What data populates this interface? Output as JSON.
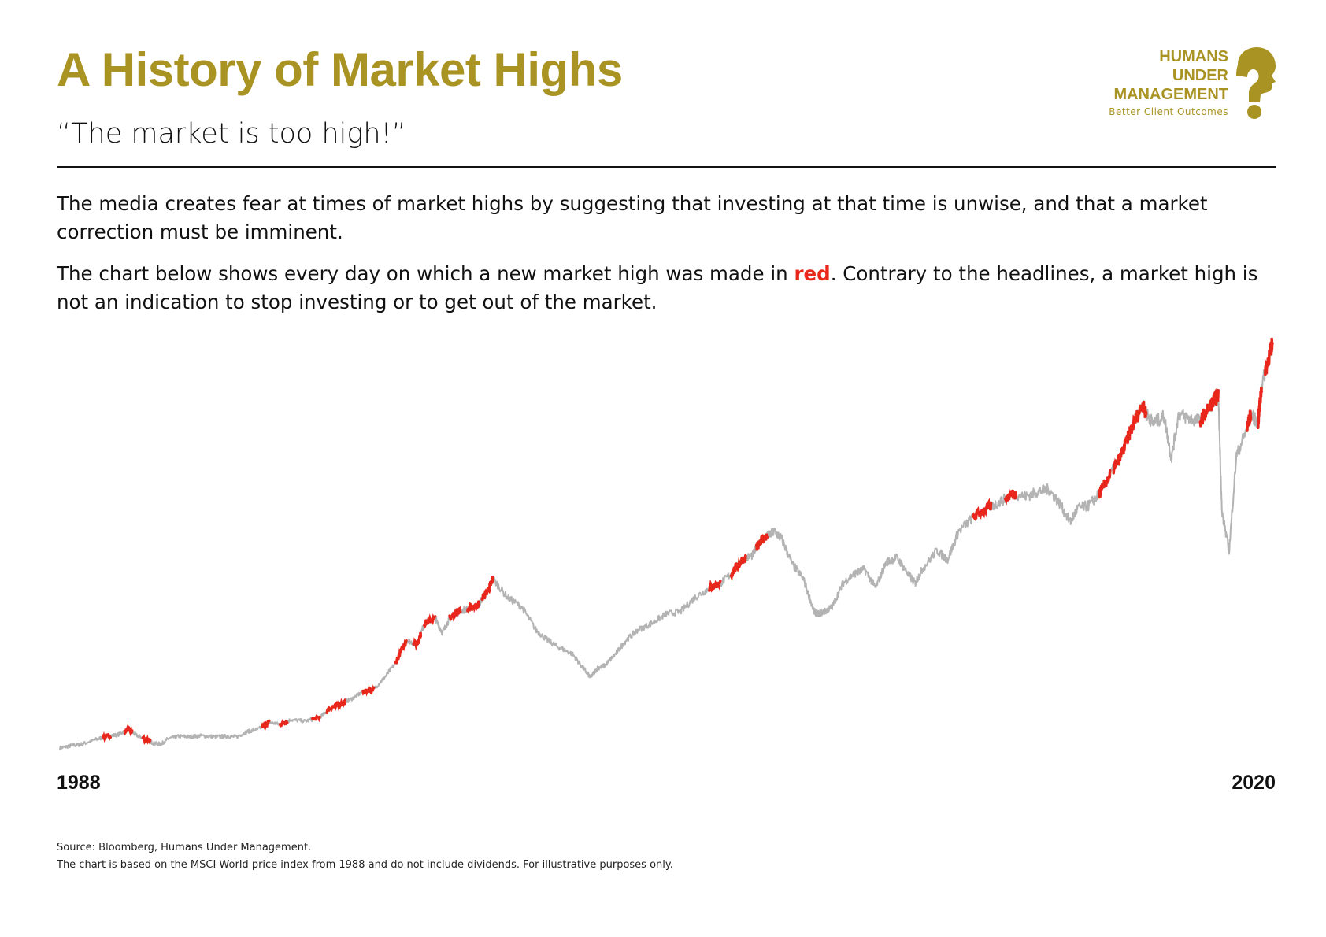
{
  "header": {
    "title": "A History of Market Highs",
    "subtitle": "“The market is too high!”"
  },
  "logo": {
    "line1": "HUMANS",
    "line2": "UNDER",
    "line3": "MANAGEMENT",
    "tagline": "Better Client Outcomes",
    "icon": "question-mark-head-icon"
  },
  "body": {
    "paragraph1": "The media creates fear at times of market highs by suggesting that investing at that time is unwise, and that a market correction must be imminent.",
    "paragraph2_before": "The chart below shows every day on which a new market high was made in ",
    "paragraph2_highlight": "red",
    "paragraph2_after": ". Contrary to the headlines, a market high is not an indication to stop investing or to get out of the market."
  },
  "colors": {
    "brand": "#a99323",
    "line": "#b3b3b3",
    "highs": "#e8261b",
    "text": "#111111"
  },
  "chart_data": {
    "type": "line",
    "title": "",
    "xlabel": "",
    "ylabel": "",
    "x_start_label": "1988",
    "x_end_label": "2020",
    "grid": false,
    "legend": "none",
    "highs_color": "red",
    "series": [
      {
        "x": [
          1988.0,
          1988.3,
          1988.6,
          1989.0,
          1989.3,
          1989.6,
          1989.9,
          1990.1,
          1990.4,
          1990.6,
          1990.8,
          1991.0,
          1991.3,
          1991.6,
          1991.9,
          1992.3,
          1992.6,
          1992.9,
          1993.2,
          1993.5,
          1993.8,
          1994.1,
          1994.4,
          1994.8,
          1995.2,
          1995.5,
          1995.8,
          1996.1,
          1996.4,
          1996.7,
          1997.0,
          1997.3,
          1997.6,
          1997.9,
          1998.1,
          1998.4,
          1998.6,
          1998.8,
          1999.0,
          1999.3,
          1999.6,
          1999.9,
          2000.0,
          2000.4,
          2000.8,
          2001.2,
          2001.5,
          2001.8,
          2002.2,
          2002.5,
          2002.7,
          2002.9,
          2003.1,
          2003.4,
          2003.7,
          2004.0,
          2004.4,
          2004.8,
          2005.2,
          2005.6,
          2006.0,
          2006.3,
          2006.6,
          2006.9,
          2007.2,
          2007.4,
          2007.6,
          2007.8,
          2008.0,
          2008.3,
          2008.6,
          2008.9,
          2009.0,
          2009.2,
          2009.4,
          2009.7,
          2010.0,
          2010.3,
          2010.6,
          2010.9,
          2011.2,
          2011.5,
          2011.7,
          2011.9,
          2012.3,
          2012.6,
          2012.9,
          2013.3,
          2013.7,
          2014.0,
          2014.4,
          2014.8,
          2015.1,
          2015.4,
          2015.7,
          2016.0,
          2016.2,
          2016.5,
          2016.8,
          2017.1,
          2017.4,
          2017.7,
          2018.0,
          2018.1,
          2018.3,
          2018.6,
          2018.8,
          2019.0,
          2019.3,
          2019.6,
          2019.9,
          2020.1,
          2020.2,
          2020.4,
          2020.6,
          2020.9,
          2021.0,
          2021.2,
          2021.3,
          2021.5,
          2021.6
        ],
        "y": [
          100,
          105,
          108,
          118,
          125,
          128,
          140,
          128,
          118,
          110,
          108,
          120,
          125,
          124,
          126,
          124,
          125,
          124,
          135,
          140,
          155,
          150,
          160,
          157,
          165,
          185,
          195,
          205,
          220,
          225,
          250,
          280,
          330,
          320,
          365,
          375,
          345,
          375,
          390,
          395,
          405,
          440,
          460,
          420,
          400,
          350,
          330,
          315,
          300,
          270,
          250,
          270,
          275,
          300,
          330,
          350,
          365,
          385,
          390,
          420,
          440,
          450,
          470,
          500,
          510,
          540,
          550,
          560,
          545,
          490,
          460,
          390,
          385,
          390,
          400,
          450,
          470,
          480,
          440,
          495,
          505,
          470,
          450,
          480,
          520,
          500,
          560,
          590,
          610,
          620,
          640,
          635,
          645,
          650,
          620,
          580,
          610,
          615,
          640,
          680,
          720,
          780,
          830,
          810,
          790,
          805,
          715,
          810,
          800,
          795,
          830,
          850,
          600,
          520,
          720,
          780,
          810,
          790,
          870,
          930,
          960
        ]
      }
    ],
    "highs_segments": [
      [
        1989.2,
        1989.4
      ],
      [
        1989.8,
        1990.0
      ],
      [
        1990.3,
        1990.5
      ],
      [
        1993.6,
        1993.8
      ],
      [
        1994.1,
        1994.3
      ],
      [
        1995.0,
        1995.2
      ],
      [
        1995.4,
        1995.9
      ],
      [
        1996.4,
        1996.7
      ],
      [
        1997.3,
        1997.6
      ],
      [
        1997.8,
        1998.0
      ],
      [
        1998.1,
        1998.4
      ],
      [
        1998.8,
        1999.1
      ],
      [
        1999.3,
        1999.6
      ],
      [
        1999.7,
        2000.0
      ],
      [
        2006.0,
        2006.3
      ],
      [
        2006.6,
        2007.0
      ],
      [
        2007.3,
        2007.6
      ],
      [
        2013.3,
        2013.8
      ],
      [
        2014.2,
        2014.5
      ],
      [
        2016.8,
        2017.1
      ],
      [
        2017.2,
        2017.7
      ],
      [
        2017.7,
        2018.1
      ],
      [
        2019.6,
        2020.1
      ],
      [
        2020.9,
        2021.0
      ],
      [
        2021.2,
        2021.3
      ],
      [
        2021.4,
        2021.6
      ]
    ]
  },
  "footnotes": {
    "source": "Source: Bloomberg, Humans Under Management.",
    "disclaimer": "The chart is based on the MSCI World price index from 1988 and do not include dividends. For illustrative purposes only."
  }
}
